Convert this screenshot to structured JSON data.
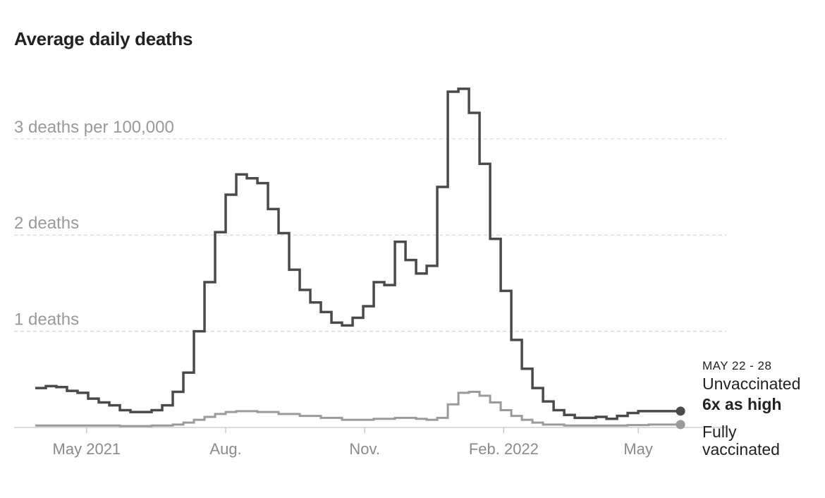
{
  "chart_data": {
    "type": "line",
    "step": true,
    "title": "Average daily deaths",
    "y_unit": "deaths per 100,000",
    "ylim": [
      0,
      3.6
    ],
    "yticks": [
      {
        "value": 1,
        "label": "1 deaths"
      },
      {
        "value": 2,
        "label": "2 deaths"
      },
      {
        "value": 3,
        "label": "3 deaths per 100,000"
      }
    ],
    "xlim": [
      "2021-03-28",
      "2022-06-04"
    ],
    "xticks": [
      {
        "date": "2021-05-01",
        "label": "May 2021"
      },
      {
        "date": "2021-08-01",
        "label": "Aug."
      },
      {
        "date": "2021-11-01",
        "label": "Nov."
      },
      {
        "date": "2022-02-01",
        "label": "Feb. 2022"
      },
      {
        "date": "2022-05-01",
        "label": "May"
      }
    ],
    "grid": true,
    "annotation": {
      "period": "MAY 22 - 28",
      "ratio": "6x as high"
    },
    "series": [
      {
        "name": "Unvaccinated",
        "color": "#4a4a4a",
        "points": [
          [
            "2021-03-28",
            0.41
          ],
          [
            "2021-04-04",
            0.43
          ],
          [
            "2021-04-11",
            0.42
          ],
          [
            "2021-04-18",
            0.38
          ],
          [
            "2021-04-25",
            0.36
          ],
          [
            "2021-05-02",
            0.3
          ],
          [
            "2021-05-09",
            0.26
          ],
          [
            "2021-05-16",
            0.23
          ],
          [
            "2021-05-23",
            0.18
          ],
          [
            "2021-05-30",
            0.16
          ],
          [
            "2021-06-06",
            0.16
          ],
          [
            "2021-06-13",
            0.18
          ],
          [
            "2021-06-20",
            0.23
          ],
          [
            "2021-06-27",
            0.37
          ],
          [
            "2021-07-04",
            0.57
          ],
          [
            "2021-07-11",
            1.0
          ],
          [
            "2021-07-18",
            1.51
          ],
          [
            "2021-07-25",
            2.03
          ],
          [
            "2021-08-01",
            2.42
          ],
          [
            "2021-08-08",
            2.63
          ],
          [
            "2021-08-15",
            2.59
          ],
          [
            "2021-08-22",
            2.54
          ],
          [
            "2021-08-29",
            2.27
          ],
          [
            "2021-09-05",
            2.02
          ],
          [
            "2021-09-12",
            1.64
          ],
          [
            "2021-09-19",
            1.43
          ],
          [
            "2021-09-26",
            1.3
          ],
          [
            "2021-10-03",
            1.2
          ],
          [
            "2021-10-10",
            1.09
          ],
          [
            "2021-10-17",
            1.06
          ],
          [
            "2021-10-24",
            1.14
          ],
          [
            "2021-10-31",
            1.26
          ],
          [
            "2021-11-07",
            1.51
          ],
          [
            "2021-11-14",
            1.48
          ],
          [
            "2021-11-21",
            1.93
          ],
          [
            "2021-11-28",
            1.74
          ],
          [
            "2021-12-05",
            1.6
          ],
          [
            "2021-12-12",
            1.68
          ],
          [
            "2021-12-19",
            2.5
          ],
          [
            "2021-12-26",
            3.49
          ],
          [
            "2022-01-02",
            3.52
          ],
          [
            "2022-01-09",
            3.27
          ],
          [
            "2022-01-16",
            2.74
          ],
          [
            "2022-01-23",
            1.96
          ],
          [
            "2022-01-30",
            1.42
          ],
          [
            "2022-02-06",
            0.91
          ],
          [
            "2022-02-13",
            0.61
          ],
          [
            "2022-02-20",
            0.41
          ],
          [
            "2022-02-27",
            0.27
          ],
          [
            "2022-03-06",
            0.18
          ],
          [
            "2022-03-13",
            0.13
          ],
          [
            "2022-03-20",
            0.1
          ],
          [
            "2022-03-27",
            0.1
          ],
          [
            "2022-04-03",
            0.11
          ],
          [
            "2022-04-10",
            0.09
          ],
          [
            "2022-04-17",
            0.12
          ],
          [
            "2022-04-24",
            0.15
          ],
          [
            "2022-05-01",
            0.17
          ],
          [
            "2022-05-08",
            0.17
          ],
          [
            "2022-05-15",
            0.17
          ],
          [
            "2022-05-22",
            0.17
          ]
        ]
      },
      {
        "name": "Fully vaccinated",
        "color": "#9a9a9a",
        "points": [
          [
            "2021-03-28",
            0.02
          ],
          [
            "2021-04-25",
            0.02
          ],
          [
            "2021-05-23",
            0.015
          ],
          [
            "2021-06-13",
            0.02
          ],
          [
            "2021-06-27",
            0.03
          ],
          [
            "2021-07-04",
            0.05
          ],
          [
            "2021-07-11",
            0.08
          ],
          [
            "2021-07-18",
            0.11
          ],
          [
            "2021-07-25",
            0.14
          ],
          [
            "2021-08-01",
            0.16
          ],
          [
            "2021-08-08",
            0.17
          ],
          [
            "2021-08-22",
            0.16
          ],
          [
            "2021-09-05",
            0.14
          ],
          [
            "2021-09-19",
            0.12
          ],
          [
            "2021-10-03",
            0.1
          ],
          [
            "2021-10-17",
            0.08
          ],
          [
            "2021-10-31",
            0.08
          ],
          [
            "2021-11-07",
            0.09
          ],
          [
            "2021-11-21",
            0.1
          ],
          [
            "2021-12-05",
            0.09
          ],
          [
            "2021-12-12",
            0.08
          ],
          [
            "2021-12-19",
            0.1
          ],
          [
            "2021-12-26",
            0.24
          ],
          [
            "2022-01-02",
            0.36
          ],
          [
            "2022-01-09",
            0.37
          ],
          [
            "2022-01-16",
            0.33
          ],
          [
            "2022-01-23",
            0.26
          ],
          [
            "2022-01-30",
            0.18
          ],
          [
            "2022-02-06",
            0.12
          ],
          [
            "2022-02-13",
            0.08
          ],
          [
            "2022-02-20",
            0.05
          ],
          [
            "2022-02-27",
            0.03
          ],
          [
            "2022-03-13",
            0.02
          ],
          [
            "2022-04-10",
            0.02
          ],
          [
            "2022-04-24",
            0.025
          ],
          [
            "2022-05-08",
            0.03
          ],
          [
            "2022-05-22",
            0.03
          ]
        ]
      }
    ]
  }
}
